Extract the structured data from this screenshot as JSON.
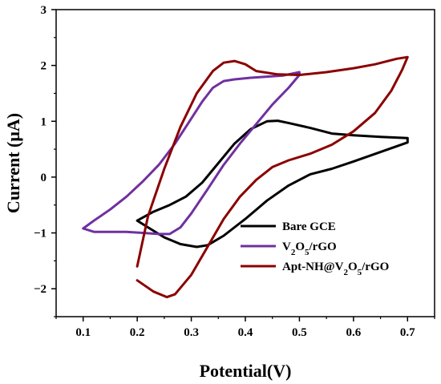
{
  "chart_data": {
    "type": "line",
    "title": "",
    "xlabel": "Potential(V)",
    "ylabel_main": "Current (",
    "ylabel_mu": "μ",
    "ylabel_end": "A)",
    "xlim": [
      0.05,
      0.75
    ],
    "ylim": [
      -2.5,
      3
    ],
    "x_ticks": [
      0.1,
      0.2,
      0.3,
      0.4,
      0.5,
      0.6,
      0.7
    ],
    "x_tick_labels": [
      "0.1",
      "0.2",
      "0.3",
      "0.4",
      "0.5",
      "0.6",
      "0.7"
    ],
    "y_ticks": [
      -2,
      -1,
      0,
      1,
      2,
      3
    ],
    "y_tick_labels": [
      "−2",
      "−1",
      "0",
      "1",
      "2",
      "3"
    ],
    "grid": false,
    "legend_position": "bottom-right",
    "series": [
      {
        "name_parts": [
          "Bare GCE"
        ],
        "color": "#000000",
        "points": [
          [
            0.2,
            -0.78
          ],
          [
            0.22,
            -0.9
          ],
          [
            0.25,
            -1.08
          ],
          [
            0.28,
            -1.2
          ],
          [
            0.31,
            -1.25
          ],
          [
            0.33,
            -1.22
          ],
          [
            0.36,
            -1.05
          ],
          [
            0.4,
            -0.75
          ],
          [
            0.44,
            -0.42
          ],
          [
            0.48,
            -0.15
          ],
          [
            0.52,
            0.05
          ],
          [
            0.56,
            0.15
          ],
          [
            0.6,
            0.28
          ],
          [
            0.65,
            0.45
          ],
          [
            0.7,
            0.62
          ],
          [
            0.7,
            0.7
          ],
          [
            0.65,
            0.72
          ],
          [
            0.6,
            0.75
          ],
          [
            0.56,
            0.78
          ],
          [
            0.52,
            0.88
          ],
          [
            0.48,
            0.97
          ],
          [
            0.46,
            1.01
          ],
          [
            0.44,
            1.0
          ],
          [
            0.41,
            0.86
          ],
          [
            0.38,
            0.6
          ],
          [
            0.35,
            0.25
          ],
          [
            0.32,
            -0.1
          ],
          [
            0.29,
            -0.35
          ],
          [
            0.26,
            -0.5
          ],
          [
            0.23,
            -0.62
          ],
          [
            0.2,
            -0.78
          ]
        ]
      },
      {
        "name_parts": [
          "V",
          "2",
          "O",
          "5",
          "/rGO"
        ],
        "color": "#7030A0",
        "points": [
          [
            0.1,
            -0.92
          ],
          [
            0.12,
            -0.98
          ],
          [
            0.15,
            -0.98
          ],
          [
            0.18,
            -0.98
          ],
          [
            0.21,
            -1.0
          ],
          [
            0.24,
            -1.02
          ],
          [
            0.26,
            -1.02
          ],
          [
            0.28,
            -0.9
          ],
          [
            0.3,
            -0.65
          ],
          [
            0.33,
            -0.22
          ],
          [
            0.36,
            0.22
          ],
          [
            0.39,
            0.6
          ],
          [
            0.42,
            0.95
          ],
          [
            0.45,
            1.3
          ],
          [
            0.48,
            1.6
          ],
          [
            0.5,
            1.83
          ],
          [
            0.5,
            1.88
          ],
          [
            0.47,
            1.82
          ],
          [
            0.44,
            1.8
          ],
          [
            0.41,
            1.78
          ],
          [
            0.38,
            1.75
          ],
          [
            0.36,
            1.72
          ],
          [
            0.34,
            1.6
          ],
          [
            0.32,
            1.35
          ],
          [
            0.3,
            1.05
          ],
          [
            0.27,
            0.6
          ],
          [
            0.24,
            0.22
          ],
          [
            0.21,
            -0.08
          ],
          [
            0.18,
            -0.35
          ],
          [
            0.15,
            -0.58
          ],
          [
            0.12,
            -0.78
          ],
          [
            0.1,
            -0.92
          ]
        ]
      },
      {
        "name_parts": [
          "Apt-NH@V",
          "2",
          "O",
          "5",
          "/rGO"
        ],
        "color": "#8B0000",
        "points": [
          [
            0.2,
            -1.85
          ],
          [
            0.23,
            -2.05
          ],
          [
            0.255,
            -2.15
          ],
          [
            0.27,
            -2.1
          ],
          [
            0.3,
            -1.75
          ],
          [
            0.33,
            -1.25
          ],
          [
            0.36,
            -0.75
          ],
          [
            0.39,
            -0.35
          ],
          [
            0.42,
            -0.05
          ],
          [
            0.45,
            0.18
          ],
          [
            0.48,
            0.3
          ],
          [
            0.52,
            0.42
          ],
          [
            0.56,
            0.58
          ],
          [
            0.6,
            0.82
          ],
          [
            0.64,
            1.15
          ],
          [
            0.67,
            1.55
          ],
          [
            0.69,
            1.92
          ],
          [
            0.7,
            2.15
          ],
          [
            0.68,
            2.12
          ],
          [
            0.64,
            2.02
          ],
          [
            0.6,
            1.95
          ],
          [
            0.55,
            1.88
          ],
          [
            0.5,
            1.83
          ],
          [
            0.46,
            1.84
          ],
          [
            0.42,
            1.9
          ],
          [
            0.4,
            2.02
          ],
          [
            0.38,
            2.08
          ],
          [
            0.36,
            2.05
          ],
          [
            0.34,
            1.9
          ],
          [
            0.31,
            1.5
          ],
          [
            0.28,
            0.9
          ],
          [
            0.25,
            0.15
          ],
          [
            0.22,
            -0.7
          ],
          [
            0.2,
            -1.6
          ]
        ]
      }
    ]
  }
}
